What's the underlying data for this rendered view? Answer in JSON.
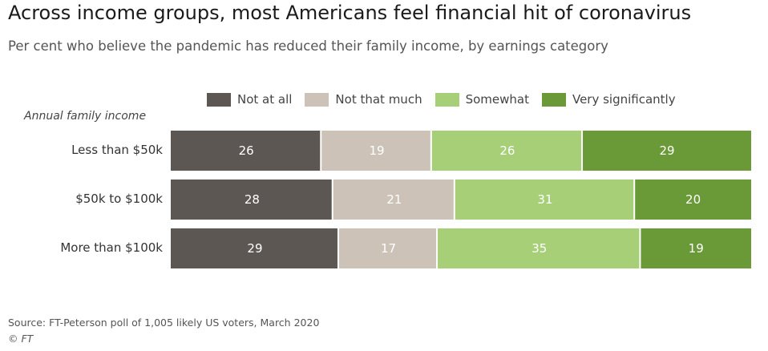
{
  "chart_data": {
    "type": "bar",
    "orientation": "horizontal-stacked",
    "title": "Across income groups, most Americans feel financial hit of coronavirus",
    "subtitle": "Per cent who believe the pandemic has reduced their family income, by earnings category",
    "row_header": "Annual family income",
    "categories": [
      "Less than $50k",
      "$50k to $100k",
      "More than $100k"
    ],
    "series": [
      {
        "name": "Not at all",
        "color": "#5c5753",
        "values": [
          26,
          28,
          29
        ]
      },
      {
        "name": "Not that much",
        "color": "#ccc2b8",
        "values": [
          19,
          21,
          17
        ]
      },
      {
        "name": "Somewhat",
        "color": "#a6cf78",
        "values": [
          26,
          31,
          35
        ]
      },
      {
        "name": "Very significantly",
        "color": "#6a9a38",
        "values": [
          29,
          20,
          19
        ]
      }
    ],
    "xlim": [
      0,
      100
    ],
    "legend_position": "top",
    "source": "Source: FT-Peterson poll of 1,005 likely US voters, March 2020",
    "credit": "© FT"
  }
}
